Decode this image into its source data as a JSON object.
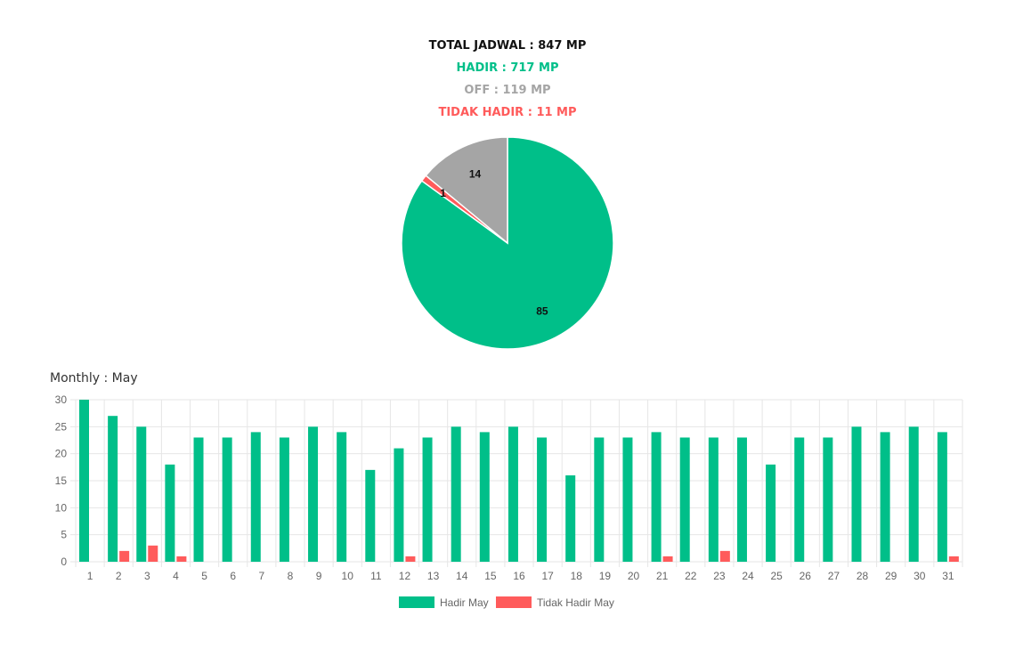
{
  "summary": {
    "total": "TOTAL JADWAL : 847 MP",
    "hadir": "HADIR : 717 MP",
    "off": "OFF : 119 MP",
    "tidak_hadir": "TIDAK HADIR : 11 MP"
  },
  "colors": {
    "hadir": "#00bf89",
    "off": "#a5a5a5",
    "tidak_hadir": "#ff5b5b",
    "total": "#111111"
  },
  "monthly_title": "Monthly : May",
  "chart_data": [
    {
      "type": "pie",
      "title": "",
      "slices": [
        {
          "label": "",
          "value": 85,
          "data_label": "85",
          "color": "#00bf89"
        },
        {
          "label": "",
          "value": 1,
          "data_label": "1",
          "color": "#ff5b5b"
        },
        {
          "label": "",
          "value": 14,
          "data_label": "14",
          "color": "#a5a5a5"
        }
      ]
    },
    {
      "type": "bar",
      "title": "Monthly : May",
      "categories": [
        "1",
        "2",
        "3",
        "4",
        "5",
        "6",
        "7",
        "8",
        "9",
        "10",
        "11",
        "12",
        "13",
        "14",
        "15",
        "16",
        "17",
        "18",
        "19",
        "20",
        "21",
        "22",
        "23",
        "24",
        "25",
        "26",
        "27",
        "28",
        "29",
        "30",
        "31"
      ],
      "series": [
        {
          "name": "Hadir May",
          "color": "#00bf89",
          "values": [
            30,
            27,
            25,
            18,
            23,
            23,
            24,
            23,
            25,
            24,
            17,
            21,
            23,
            25,
            24,
            25,
            23,
            16,
            23,
            23,
            24,
            23,
            23,
            23,
            18,
            23,
            23,
            25,
            24,
            25,
            24
          ]
        },
        {
          "name": "Tidak Hadir May",
          "color": "#ff5b5b",
          "values": [
            0,
            2,
            3,
            1,
            0,
            0,
            0,
            0,
            0,
            0,
            0,
            1,
            0,
            0,
            0,
            0,
            0,
            0,
            0,
            0,
            1,
            0,
            2,
            0,
            0,
            0,
            0,
            0,
            0,
            0,
            1
          ]
        }
      ],
      "ylim": [
        0,
        30
      ],
      "yticks": [
        0,
        5,
        10,
        15,
        20,
        25,
        30
      ],
      "grid": true,
      "legend": "bottom-center"
    }
  ]
}
